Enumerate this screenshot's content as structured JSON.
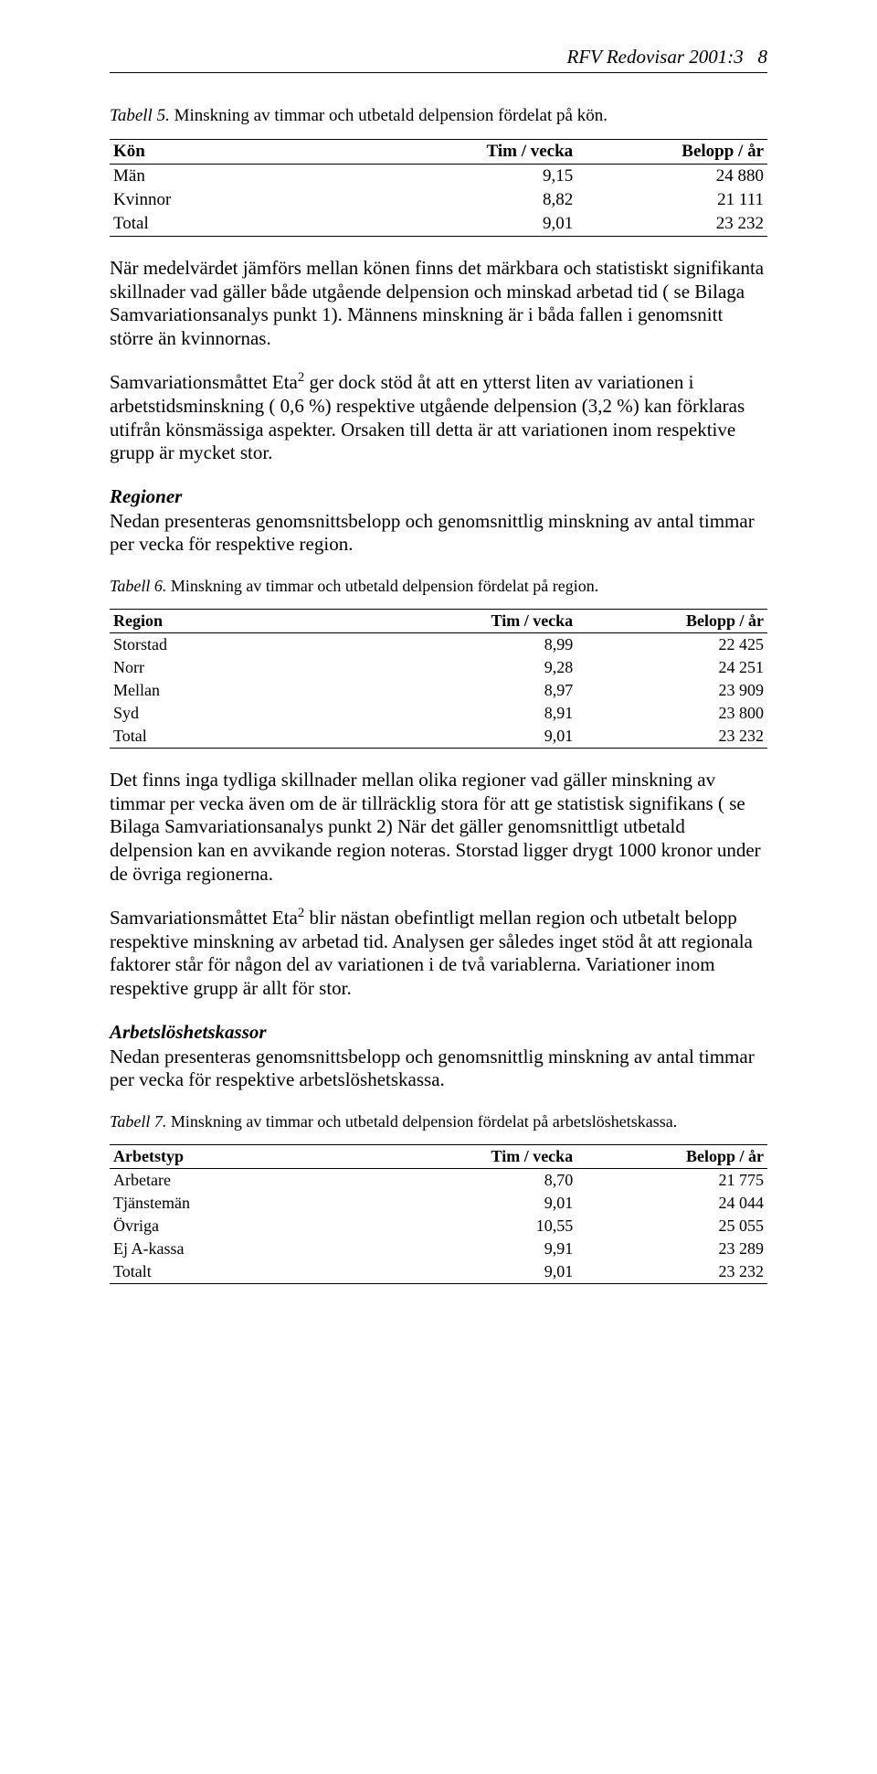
{
  "header": {
    "running_head": "RFV Redovisar 2001:3",
    "page_number": "8"
  },
  "table5": {
    "caption_num": "Tabell 5.",
    "caption_text": "Minskning av timmar och utbetald delpension fördelat på kön.",
    "columns": [
      "Kön",
      "Tim / vecka",
      "Belopp / år"
    ],
    "rows": [
      [
        "Män",
        "9,15",
        "24 880"
      ],
      [
        "Kvinnor",
        "8,82",
        "21 111"
      ],
      [
        "Total",
        "9,01",
        "23 232"
      ]
    ]
  },
  "para1": "När medelvärdet jämförs mellan könen finns det märkbara och statistiskt signifikanta skillnader vad gäller både utgående delpension och minskad arbetad tid ( se Bilaga Samvariationsanalys punkt 1). Männens minskning är i båda fallen i genomsnitt större än kvinnornas.",
  "para2a": "Samvariationsmåttet Eta",
  "para2sup": "2",
  "para2b": " ger dock stöd åt att en ytterst liten av variationen i arbetstidsminskning ( 0,6 %) respektive utgående delpension (3,2 %) kan förklaras utifrån könsmässiga aspekter. Orsaken till detta är att variationen inom respektive grupp är mycket stor.",
  "section_regioner": {
    "heading": "Regioner",
    "text": "Nedan presenteras genomsnittsbelopp och genomsnittlig minskning av antal timmar per vecka för respektive region."
  },
  "table6": {
    "caption_num": "Tabell 6.",
    "caption_text": "Minskning av timmar och utbetald delpension fördelat på region.",
    "columns": [
      "Region",
      "Tim / vecka",
      "Belopp / år"
    ],
    "rows": [
      [
        "Storstad",
        "8,99",
        "22 425"
      ],
      [
        "Norr",
        "9,28",
        "24 251"
      ],
      [
        "Mellan",
        "8,97",
        "23 909"
      ],
      [
        "Syd",
        "8,91",
        "23 800"
      ],
      [
        "Total",
        "9,01",
        "23 232"
      ]
    ]
  },
  "para3": "Det finns inga tydliga skillnader mellan olika regioner vad gäller minskning av timmar per vecka även om de är tillräcklig stora för att ge statistisk signifikans ( se Bilaga Samvariationsanalys punkt 2) När det gäller genomsnittligt utbetald delpension kan en avvikande region noteras. Storstad ligger drygt 1000 kronor under de övriga regionerna.",
  "para4a": "Samvariationsmåttet Eta",
  "para4sup": "2",
  "para4b": " blir nästan obefintligt mellan region och utbetalt belopp respektive minskning av arbetad tid. Analysen ger således inget stöd åt att regionala faktorer står för någon del av variationen i de två variablerna. Variationer inom respektive grupp är allt för stor.",
  "section_akassa": {
    "heading": "Arbetslöshetskassor",
    "text": "Nedan presenteras genomsnittsbelopp och genomsnittlig minskning av antal timmar per vecka för respektive arbetslöshetskassa."
  },
  "table7": {
    "caption_num": "Tabell 7.",
    "caption_text": "Minskning av timmar och utbetald delpension fördelat på arbetslöshetskassa.",
    "columns": [
      "Arbetstyp",
      "Tim / vecka",
      "Belopp / år"
    ],
    "rows": [
      [
        "Arbetare",
        "8,70",
        "21 775"
      ],
      [
        "Tjänstemän",
        "9,01",
        "24 044"
      ],
      [
        "Övriga",
        "10,55",
        "25 055"
      ],
      [
        "Ej A-kassa",
        "9,91",
        "23 289"
      ],
      [
        "Totalt",
        "9,01",
        "23 232"
      ]
    ]
  }
}
